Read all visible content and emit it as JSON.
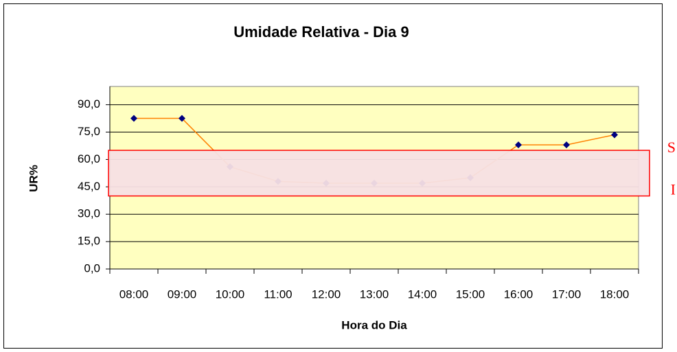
{
  "chart_data": {
    "type": "line",
    "title": "Umidade Relativa - Dia 9",
    "x_label": "Hora do Dia",
    "y_label": "UR%",
    "categories": [
      "08:00",
      "09:00",
      "10:00",
      "11:00",
      "12:00",
      "13:00",
      "14:00",
      "15:00",
      "16:00",
      "17:00",
      "18:00"
    ],
    "series": [
      {
        "name": "UR%",
        "color": "#ff8000",
        "marker_color": "#000080",
        "values": [
          82.5,
          82.5,
          56,
          48,
          47,
          47,
          47,
          50,
          68,
          68,
          73.5
        ]
      }
    ],
    "ylim": [
      0,
      100
    ],
    "yticks": [
      {
        "value": 0,
        "label": "0,0"
      },
      {
        "value": 15,
        "label": "15,0"
      },
      {
        "value": 30,
        "label": "30,0"
      },
      {
        "value": 45,
        "label": "45,0"
      },
      {
        "value": 60,
        "label": "60,0"
      },
      {
        "value": 75,
        "label": "75,0"
      },
      {
        "value": 90,
        "label": "90,0"
      }
    ],
    "grid": true,
    "plot_background": "#ffffc0",
    "limits": [
      {
        "label": "S",
        "value": 65
      },
      {
        "label": "I",
        "value": 40
      }
    ],
    "limit_color": "#ff0000",
    "limit_fill": "#f7e0e4"
  }
}
